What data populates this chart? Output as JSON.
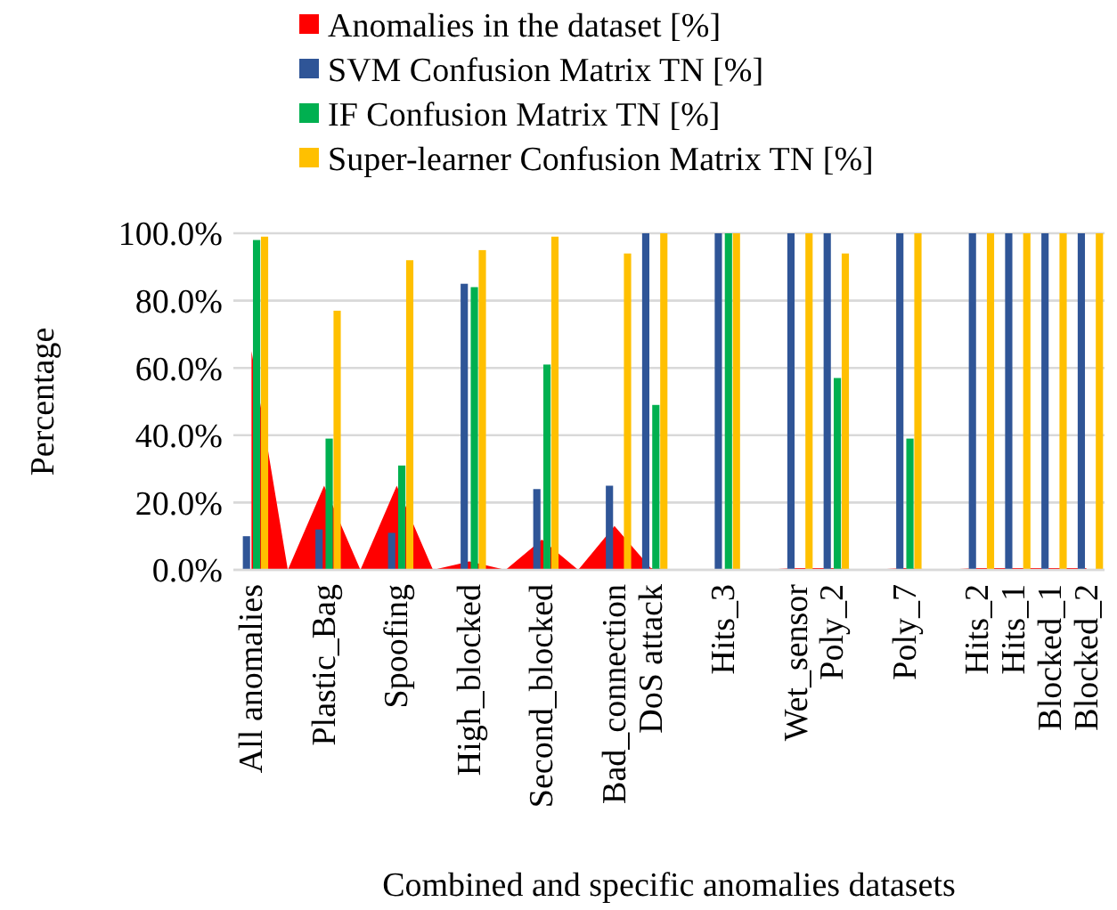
{
  "chart_data": {
    "type": "bar",
    "xlabel": "Combined and specific anomalies datasets",
    "ylabel": "Percentage",
    "categories": [
      "All anomalies",
      null,
      "Plastic_Bag",
      null,
      "Spoofing",
      null,
      "High_blocked",
      null,
      "Second_blocked",
      null,
      "Bad_connection",
      "DoS attack",
      null,
      "Hits_3",
      null,
      "Wet_sensor",
      "Poly_2",
      null,
      "Poly_7",
      null,
      "Hits_2",
      "Hits_1",
      "Blocked_1",
      "Blocked_2"
    ],
    "series": [
      {
        "name": "Anomalies in the dataset [%]",
        "type": "area",
        "color": "#ff0000",
        "values": [
          65,
          0,
          25,
          0,
          25,
          0,
          2.5,
          0,
          9,
          0,
          13,
          0.5,
          0,
          0,
          0,
          0.5,
          0.5,
          0,
          0.5,
          0,
          0.5,
          0.5,
          0.5,
          0.5
        ]
      },
      {
        "name": "SVM Confusion Matrix TN [%]",
        "color": "#2f5597",
        "values": [
          10,
          null,
          12,
          null,
          11,
          null,
          85,
          null,
          24,
          null,
          25,
          100,
          null,
          100,
          null,
          100,
          100,
          null,
          100,
          null,
          100,
          100,
          100,
          100
        ]
      },
      {
        "name": "IF Confusion Matrix TN [%]",
        "color": "#00b050",
        "values": [
          98,
          null,
          39,
          null,
          31,
          null,
          84,
          null,
          61,
          null,
          0,
          49,
          null,
          100,
          null,
          0,
          57,
          null,
          39,
          null,
          0,
          0,
          0,
          0
        ]
      },
      {
        "name": "Super-learner Confusion Matrix TN [%]",
        "color": "#ffc000",
        "values": [
          99,
          null,
          77,
          null,
          92,
          null,
          95,
          null,
          99,
          null,
          94,
          100,
          null,
          100,
          null,
          100,
          94,
          null,
          100,
          null,
          100,
          100,
          100,
          100
        ]
      }
    ],
    "ylim": [
      0,
      100
    ],
    "yticks": [
      {
        "value": 0,
        "label": "0.0%"
      },
      {
        "value": 20,
        "label": "20.0%"
      },
      {
        "value": 40,
        "label": "40.0%"
      },
      {
        "value": 60,
        "label": "60.0%"
      },
      {
        "value": 80,
        "label": "80.0%"
      },
      {
        "value": 100,
        "label": "100.0%"
      }
    ],
    "grid": "y",
    "legend": "top"
  }
}
